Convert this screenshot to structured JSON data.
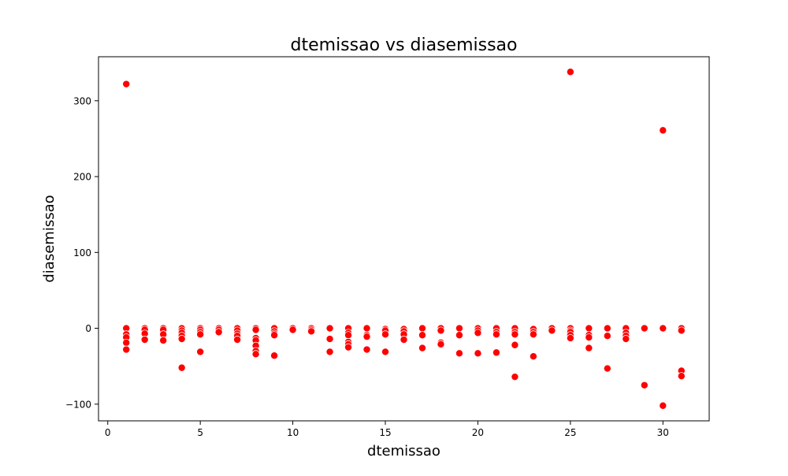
{
  "chart_data": {
    "type": "scatter",
    "title": "dtemissao vs diasemissao",
    "xlabel": "dtemissao",
    "ylabel": "diasemissao",
    "xlim": [
      -0.5,
      32.5
    ],
    "ylim": [
      -122,
      358
    ],
    "xticks": [
      0,
      5,
      10,
      15,
      20,
      25,
      30
    ],
    "yticks": [
      -100,
      0,
      100,
      200,
      300
    ],
    "ytick_labels": [
      "−100",
      "0",
      "100",
      "200",
      "300"
    ],
    "grid": false,
    "legend": "none",
    "marker_color": "#ff0000",
    "marker_edge_color": "#ffffff",
    "series": [
      {
        "points": [
          [
            1,
            322
          ],
          [
            1,
            0
          ],
          [
            1,
            -8
          ],
          [
            1,
            -12
          ],
          [
            1,
            -19
          ],
          [
            1,
            -28
          ],
          [
            2,
            0
          ],
          [
            2,
            -2
          ],
          [
            2,
            -7
          ],
          [
            2,
            -15
          ],
          [
            3,
            0
          ],
          [
            3,
            -2
          ],
          [
            3,
            -8
          ],
          [
            3,
            -16
          ],
          [
            4,
            0
          ],
          [
            4,
            -3
          ],
          [
            4,
            -6
          ],
          [
            4,
            -10
          ],
          [
            4,
            -14
          ],
          [
            4,
            -52
          ],
          [
            5,
            0
          ],
          [
            5,
            -2
          ],
          [
            5,
            -5
          ],
          [
            5,
            -8
          ],
          [
            5,
            -31
          ],
          [
            6,
            0
          ],
          [
            6,
            -2
          ],
          [
            6,
            -5
          ],
          [
            7,
            0
          ],
          [
            7,
            -3
          ],
          [
            7,
            -7
          ],
          [
            7,
            -10
          ],
          [
            7,
            -15
          ],
          [
            8,
            0
          ],
          [
            8,
            -2
          ],
          [
            8,
            -13
          ],
          [
            8,
            -16
          ],
          [
            8,
            -23
          ],
          [
            8,
            -30
          ],
          [
            8,
            -34
          ],
          [
            9,
            0
          ],
          [
            9,
            -4
          ],
          [
            9,
            -7
          ],
          [
            9,
            -9
          ],
          [
            9,
            -36
          ],
          [
            10,
            0
          ],
          [
            10,
            -2
          ],
          [
            11,
            0
          ],
          [
            11,
            -2
          ],
          [
            11,
            -4
          ],
          [
            12,
            0
          ],
          [
            12,
            -14
          ],
          [
            12,
            -31
          ],
          [
            13,
            0
          ],
          [
            13,
            -6
          ],
          [
            13,
            -9
          ],
          [
            13,
            -18
          ],
          [
            13,
            -21
          ],
          [
            13,
            -25
          ],
          [
            14,
            0
          ],
          [
            14,
            -9
          ],
          [
            14,
            -11
          ],
          [
            14,
            -28
          ],
          [
            15,
            -1
          ],
          [
            15,
            -3
          ],
          [
            15,
            -8
          ],
          [
            15,
            -31
          ],
          [
            16,
            -1
          ],
          [
            16,
            -4
          ],
          [
            16,
            -8
          ],
          [
            16,
            -15
          ],
          [
            17,
            0
          ],
          [
            17,
            -9
          ],
          [
            17,
            -26
          ],
          [
            18,
            0
          ],
          [
            18,
            -3
          ],
          [
            18,
            -19
          ],
          [
            18,
            -21
          ],
          [
            19,
            0
          ],
          [
            19,
            -9
          ],
          [
            19,
            -33
          ],
          [
            20,
            0
          ],
          [
            20,
            -3
          ],
          [
            20,
            -6
          ],
          [
            20,
            -33
          ],
          [
            21,
            0
          ],
          [
            21,
            -5
          ],
          [
            21,
            -8
          ],
          [
            21,
            -32
          ],
          [
            22,
            0
          ],
          [
            22,
            -5
          ],
          [
            22,
            -8
          ],
          [
            22,
            -22
          ],
          [
            22,
            -64
          ],
          [
            23,
            -1
          ],
          [
            23,
            -5
          ],
          [
            23,
            -8
          ],
          [
            23,
            -37
          ],
          [
            24,
            0
          ],
          [
            24,
            -3
          ],
          [
            25,
            338
          ],
          [
            25,
            0
          ],
          [
            25,
            -3
          ],
          [
            25,
            -5
          ],
          [
            25,
            -9
          ],
          [
            25,
            -13
          ],
          [
            26,
            0
          ],
          [
            26,
            -9
          ],
          [
            26,
            -12
          ],
          [
            26,
            -26
          ],
          [
            27,
            0
          ],
          [
            27,
            -10
          ],
          [
            27,
            -53
          ],
          [
            28,
            0
          ],
          [
            28,
            -6
          ],
          [
            28,
            -10
          ],
          [
            28,
            -14
          ],
          [
            29,
            0
          ],
          [
            29,
            -75
          ],
          [
            30,
            261
          ],
          [
            30,
            0
          ],
          [
            30,
            -102
          ],
          [
            31,
            0
          ],
          [
            31,
            -3
          ],
          [
            31,
            -56
          ],
          [
            31,
            -63
          ]
        ]
      }
    ]
  }
}
